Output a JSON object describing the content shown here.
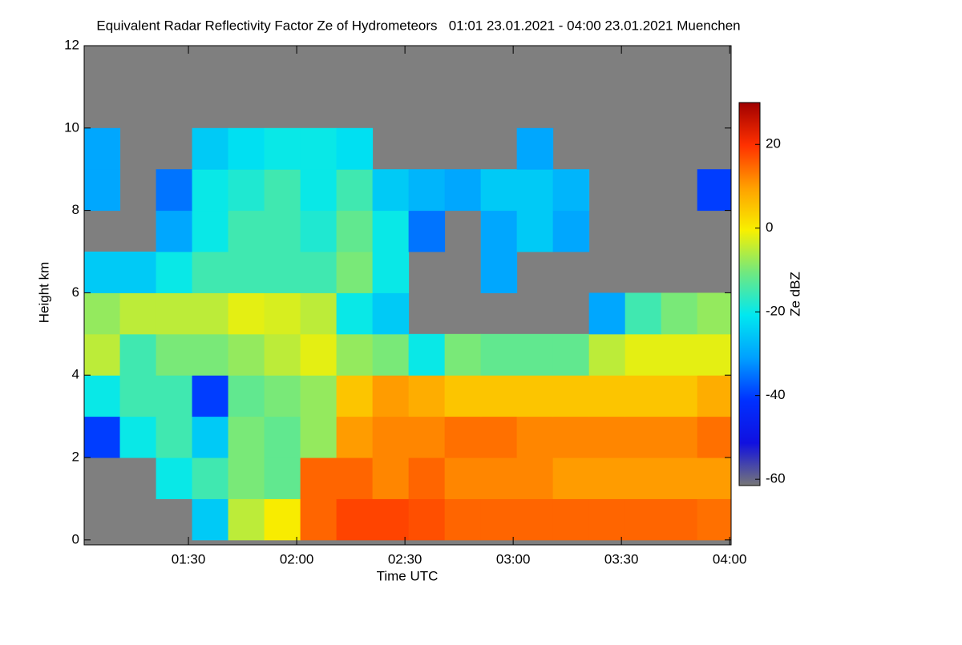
{
  "chart_data": {
    "type": "heatmap",
    "title": "Equivalent Radar Reflectivity Factor Ze of Hydrometeors   01:01 23.01.2021 - 04:00 23.01.2021 Muenchen",
    "x_label": "Time UTC",
    "y_label": "Height km",
    "colorbar_label": "Ze dBZ",
    "xlim": [
      61.1,
      240.4
    ],
    "xticks": [
      {
        "value": 90,
        "label": "01:30"
      },
      {
        "value": 120,
        "label": "02:00"
      },
      {
        "value": 150,
        "label": "02:30"
      },
      {
        "value": 180,
        "label": "03:00"
      },
      {
        "value": 210,
        "label": "03:30"
      },
      {
        "value": 240,
        "label": "04:00"
      }
    ],
    "ylim": [
      -0.12,
      12
    ],
    "yticks": [
      0,
      2,
      4,
      6,
      8,
      10,
      12
    ],
    "clim": [
      -61.5,
      30
    ],
    "cticks": [
      20,
      0,
      -20,
      -40,
      -60
    ],
    "colormap": [
      "#777777",
      "#1010e0",
      "#0030ff",
      "#00a0ff",
      "#00e8f0",
      "#70e880",
      "#f8f000",
      "#ffa000",
      "#ff3000",
      "#a00000"
    ],
    "background_color": "#7f7f7f",
    "x": [
      61,
      71,
      81,
      91,
      101,
      111,
      121,
      131,
      141,
      151,
      161,
      171,
      181,
      191,
      201,
      211,
      221,
      231
    ],
    "y": [
      0,
      1,
      2,
      3,
      4,
      5,
      6,
      7,
      8,
      9,
      10,
      11
    ],
    "z": [
      [
        null,
        null,
        null,
        -25,
        -5,
        0,
        15,
        18,
        18,
        17,
        15,
        15,
        15,
        15,
        15,
        15,
        15,
        14
      ],
      [
        null,
        null,
        -20,
        -15,
        -10,
        -12,
        15,
        15,
        12,
        15,
        12,
        12,
        12,
        10,
        10,
        10,
        10,
        10
      ],
      [
        -40,
        -20,
        -15,
        -25,
        -10,
        -12,
        -8,
        10,
        12,
        12,
        14,
        14,
        12,
        12,
        12,
        12,
        12,
        14
      ],
      [
        -20,
        -15,
        -15,
        -40,
        -12,
        -10,
        -8,
        5,
        10,
        8,
        5,
        5,
        5,
        5,
        5,
        5,
        5,
        8
      ],
      [
        -5,
        -15,
        -10,
        -10,
        -8,
        -5,
        -2,
        -8,
        -10,
        -20,
        -10,
        -12,
        -12,
        -12,
        -5,
        -2,
        -2,
        -2
      ],
      [
        -8,
        -5,
        -5,
        -5,
        -2,
        -3,
        -5,
        -20,
        -25,
        null,
        null,
        null,
        null,
        null,
        -30,
        -15,
        -10,
        -8
      ],
      [
        -25,
        -25,
        -20,
        -15,
        -15,
        -15,
        -15,
        -10,
        -20,
        null,
        null,
        -30,
        null,
        null,
        null,
        null,
        null,
        null
      ],
      [
        null,
        null,
        -30,
        -20,
        -15,
        -15,
        -18,
        -12,
        -20,
        -35,
        null,
        -30,
        -25,
        -30,
        null,
        null,
        null,
        null
      ],
      [
        -30,
        null,
        -35,
        -20,
        -18,
        -15,
        -20,
        -15,
        -25,
        -28,
        -30,
        -25,
        -25,
        -28,
        null,
        null,
        null,
        -40
      ],
      [
        -30,
        null,
        null,
        -25,
        -22,
        -20,
        -20,
        -22,
        null,
        null,
        null,
        null,
        -30,
        null,
        null,
        null,
        null,
        null
      ],
      [
        null,
        null,
        null,
        null,
        null,
        null,
        null,
        null,
        null,
        null,
        null,
        null,
        null,
        null,
        null,
        null,
        null,
        null
      ],
      [
        null,
        null,
        null,
        null,
        null,
        null,
        null,
        null,
        null,
        null,
        null,
        null,
        null,
        null,
        null,
        null,
        null,
        null
      ]
    ]
  }
}
